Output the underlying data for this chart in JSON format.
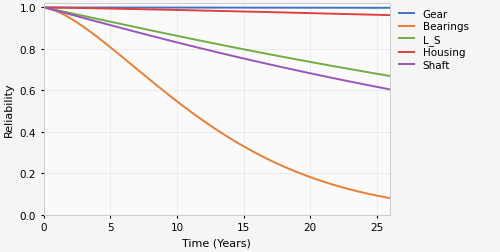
{
  "title": "",
  "xlabel": "Time (Years)",
  "ylabel": "Reliability",
  "xlim": [
    0,
    26
  ],
  "ylim": [
    0,
    1.02
  ],
  "xticks": [
    0,
    5,
    10,
    15,
    20,
    25
  ],
  "yticks": [
    0,
    0.2,
    0.4,
    0.6,
    0.8,
    1
  ],
  "series": [
    {
      "label": "Gear",
      "color": "#4472c4",
      "eta": 2000,
      "beta": 1.5
    },
    {
      "label": "Bearings",
      "color": "#ed7d31",
      "eta": 14,
      "beta": 1.5
    },
    {
      "label": "L_S",
      "color": "#70ad47",
      "eta": 62,
      "beta": 1.05
    },
    {
      "label": "Housing",
      "color": "#e04040",
      "eta": 400,
      "beta": 1.2
    },
    {
      "label": "Shaft",
      "color": "#9955bb",
      "eta": 50,
      "beta": 1.05
    }
  ],
  "figsize": [
    5.0,
    2.53
  ],
  "dpi": 100,
  "grid_color": "#e8e8e8",
  "background_color": "#f5f5f5",
  "plot_background": "#fafafa",
  "legend_fontsize": 7.5,
  "axis_fontsize": 8,
  "tick_fontsize": 7.5,
  "linewidth": 1.4
}
